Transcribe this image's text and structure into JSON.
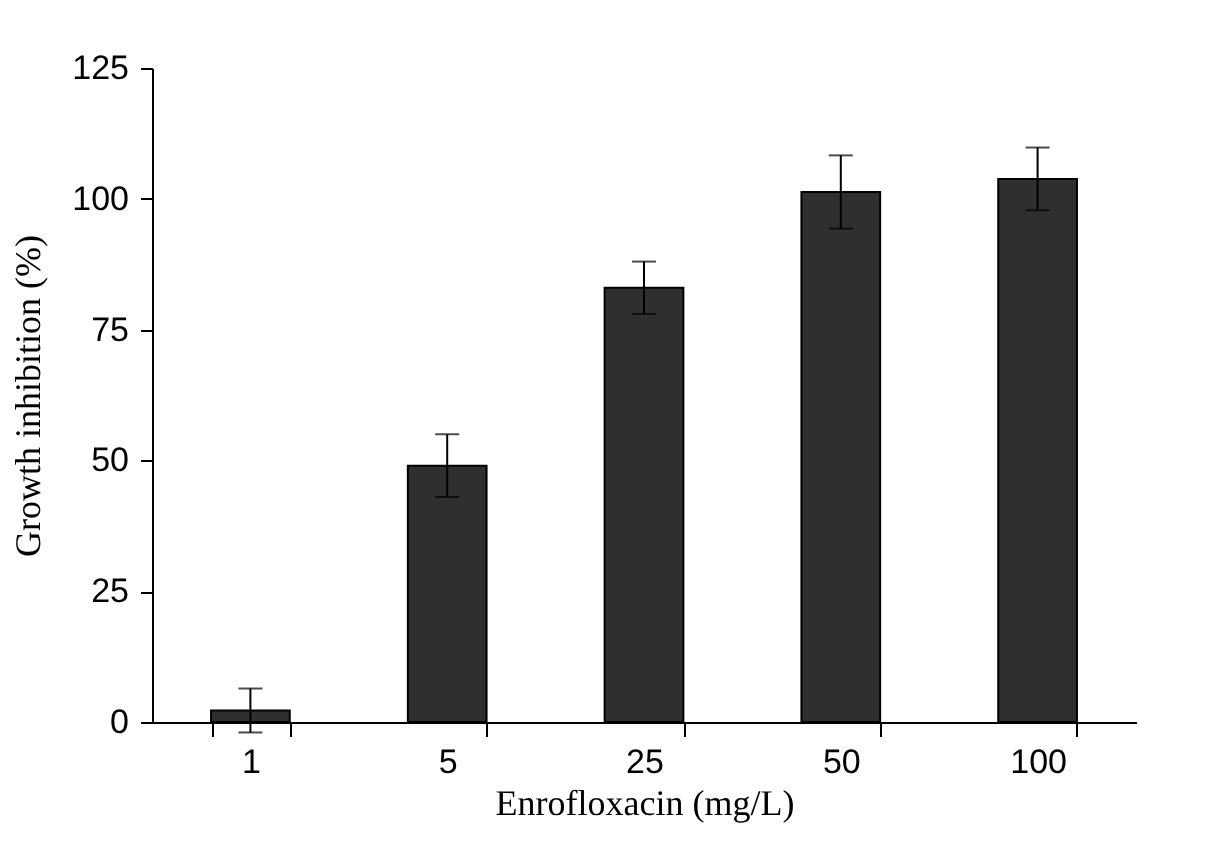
{
  "chart_data": {
    "type": "bar",
    "xlabel": "Enrofloxacin (mg/L)",
    "ylabel": "Growth inhibition (%)",
    "categories": [
      "1",
      "5",
      "25",
      "50",
      "100"
    ],
    "values": [
      2.2,
      49,
      83,
      101.3,
      103.8
    ],
    "errors": [
      4.2,
      6,
      5,
      7,
      6
    ],
    "color": "#2f2f2f",
    "ylim": [
      0,
      125
    ],
    "yticks": [
      0,
      25,
      50,
      75,
      100,
      125
    ],
    "grid": false
  }
}
